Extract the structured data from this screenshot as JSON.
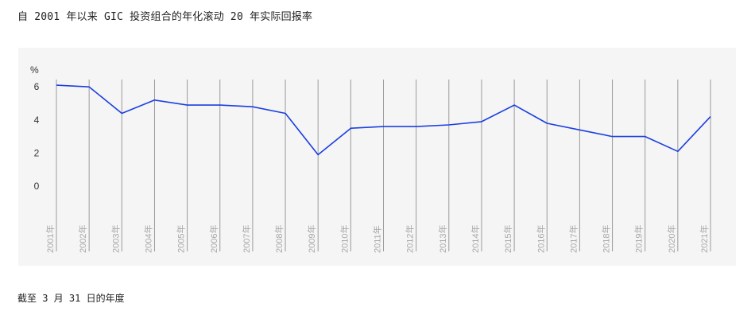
{
  "title": "自 2001 年以来 GIC 投资组合的年化滚动 20 年实际回报率",
  "note": "截至 3 月 31 日的年度",
  "chart_data": {
    "type": "line",
    "title": "自 2001 年以来 GIC 投资组合的年化滚动 20 年实际回报率",
    "ylabel": "%",
    "xlabel": "",
    "ylim": [
      0,
      6
    ],
    "yticks": [
      0,
      2,
      4,
      6
    ],
    "grid": "vertical",
    "legend": "none",
    "color": "#1a3fe0",
    "categories": [
      "2001年",
      "2002年",
      "2003年",
      "2004年",
      "2005年",
      "2006年",
      "2007年",
      "2008年",
      "2009年",
      "2010年",
      "2011年",
      "2012年",
      "2013年",
      "2014年",
      "2015年",
      "2016年",
      "2017年",
      "2018年",
      "2019年",
      "2020年",
      "2021年"
    ],
    "series": [
      {
        "values": [
          6.1,
          6.0,
          4.4,
          5.2,
          4.9,
          4.9,
          4.8,
          4.4,
          1.9,
          3.5,
          3.6,
          3.6,
          3.7,
          3.9,
          4.9,
          3.8,
          3.4,
          3.0,
          3.0,
          2.1,
          4.2
        ]
      }
    ]
  }
}
